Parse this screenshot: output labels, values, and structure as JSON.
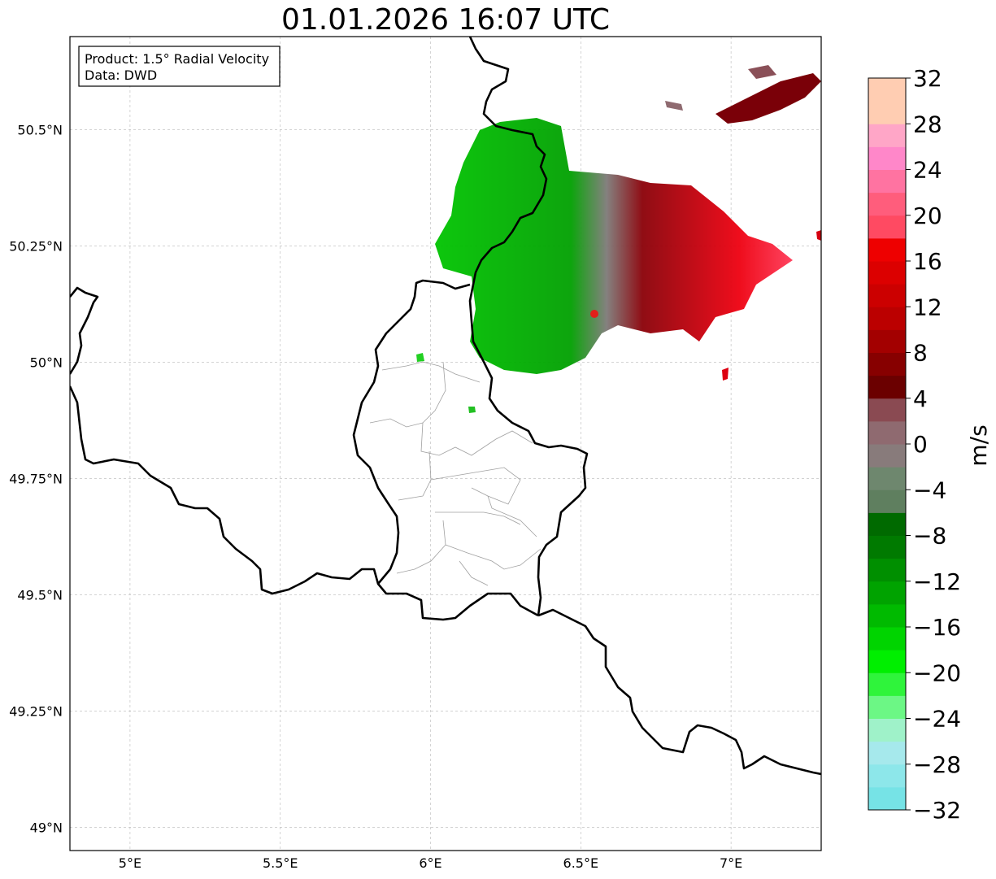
{
  "title": "01.01.2026 16:07 UTC",
  "info_box": {
    "line1": "Product: 1.5° Radial Velocity",
    "line2": "Data: DWD"
  },
  "axes": {
    "lon_ticks": [
      {
        "value": 5.0,
        "label": "5°E"
      },
      {
        "value": 5.5,
        "label": "5.5°E"
      },
      {
        "value": 6.0,
        "label": "6°E"
      },
      {
        "value": 6.5,
        "label": "6.5°E"
      },
      {
        "value": 7.0,
        "label": "7°E"
      }
    ],
    "lat_ticks": [
      {
        "value": 50.5,
        "label": "50.5°N"
      },
      {
        "value": 50.25,
        "label": "50.25°N"
      },
      {
        "value": 50.0,
        "label": "50°N"
      },
      {
        "value": 49.75,
        "label": "49.75°N"
      },
      {
        "value": 49.5,
        "label": "49.5°N"
      },
      {
        "value": 49.25,
        "label": "49.25°N"
      },
      {
        "value": 49.0,
        "label": "49°N"
      }
    ],
    "lon_range": [
      4.8,
      7.3
    ],
    "lat_range": [
      48.95,
      50.7
    ],
    "grid": true
  },
  "colorbar": {
    "unit": "m/s",
    "range": [
      -32,
      32
    ],
    "step": 2,
    "tick_labels": [
      "32",
      "28",
      "24",
      "20",
      "16",
      "12",
      "8",
      "4",
      "0",
      "−4",
      "−8",
      "−12",
      "−16",
      "−20",
      "−24",
      "−28",
      "−32"
    ],
    "colors": [
      "#76e3e6",
      "#8de7ea",
      "#a6e9ec",
      "#9ff2c9",
      "#6cf785",
      "#2ff43b",
      "#00ef00",
      "#00d400",
      "#00ba00",
      "#00a300",
      "#008f00",
      "#007a00",
      "#006a00",
      "#5f7f5f",
      "#6e876e",
      "#887b7b",
      "#8f6a70",
      "#8a4a52",
      "#6b0000",
      "#870000",
      "#a30000",
      "#bb0000",
      "#cc0000",
      "#dc0000",
      "#ee0000",
      "#ff4a62",
      "#ff5d7c",
      "#ff73a1",
      "#ff87c9",
      "#ffa6c7",
      "#ffcdb2",
      "#ffcdb2"
    ]
  },
  "colors": {
    "border": "#000000",
    "admin_border": "#a0a0a0",
    "grid": "#b8b8b8",
    "radar_site": "#e0201a"
  },
  "radar_site": {
    "lon": 6.55,
    "lat": 50.11
  }
}
